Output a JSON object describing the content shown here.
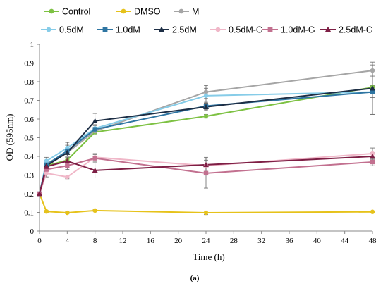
{
  "chart_data": {
    "type": "line",
    "title": "",
    "caption": "(a)",
    "xlabel": "Time (h)",
    "ylabel": "OD (595nm)",
    "xlim": [
      0,
      48
    ],
    "ylim": [
      0,
      1
    ],
    "x_ticks": [
      0,
      4,
      8,
      12,
      16,
      20,
      24,
      28,
      32,
      36,
      40,
      44,
      48
    ],
    "y_ticks": [
      0,
      0.1,
      0.2,
      0.3,
      0.4,
      0.5,
      0.6,
      0.7,
      0.8,
      0.9,
      1
    ],
    "x_tick_labels": [
      "0",
      "4",
      "8",
      "12",
      "16",
      "20",
      "24",
      "28",
      "32",
      "36",
      "40",
      "44",
      "48"
    ],
    "y_tick_labels": [
      "0",
      "0.1",
      "0.2",
      "0.3",
      "0.4",
      "0.5",
      "0.6",
      "0.7",
      "0.8",
      "0.9",
      "1"
    ],
    "grid": false,
    "legend_position": "top",
    "x": [
      0,
      1,
      4,
      8,
      24,
      48
    ],
    "series": [
      {
        "name": "Control",
        "color": "#7dc142",
        "marker": "circle",
        "values": [
          0.2,
          0.35,
          0.38,
          0.53,
          0.615,
          0.77
        ],
        "errors": [
          0.005,
          0.01,
          0.01,
          0.01,
          0.01,
          0.01
        ]
      },
      {
        "name": "DMSO",
        "color": "#e6c21a",
        "marker": "circle",
        "values": [
          0.2,
          0.105,
          0.098,
          0.11,
          0.098,
          0.103
        ],
        "errors": [
          0.005,
          0.005,
          0.005,
          0.005,
          0.01,
          0.005
        ]
      },
      {
        "name": "M",
        "color": "#a5a5a5",
        "marker": "circle",
        "values": [
          0.2,
          0.36,
          0.42,
          0.535,
          0.745,
          0.86
        ],
        "errors": [
          0.005,
          0.02,
          0.02,
          0.02,
          0.035,
          0.03
        ]
      },
      {
        "name": "0.5dM",
        "color": "#86cce8",
        "marker": "circle",
        "values": [
          0.2,
          0.375,
          0.445,
          0.55,
          0.725,
          0.745
        ],
        "errors": [
          0.005,
          0.02,
          0.03,
          0.02,
          0.04,
          0.03
        ]
      },
      {
        "name": "1.0dM",
        "color": "#2e75a2",
        "marker": "square",
        "values": [
          0.2,
          0.355,
          0.43,
          0.545,
          0.67,
          0.745
        ],
        "errors": [
          0.005,
          0.02,
          0.03,
          0.02,
          0.02,
          0.12
        ]
      },
      {
        "name": "2.5dM",
        "color": "#1d2e45",
        "marker": "triangle",
        "values": [
          0.2,
          0.35,
          0.42,
          0.59,
          0.665,
          0.765
        ],
        "errors": [
          0.005,
          0.02,
          0.02,
          0.04,
          0.02,
          0.14
        ]
      },
      {
        "name": "0.5dM-G",
        "color": "#f0b7c8",
        "marker": "circle",
        "values": [
          0.2,
          0.31,
          0.29,
          0.395,
          0.35,
          0.415
        ],
        "errors": [
          0.005,
          0.02,
          0.01,
          0.02,
          0.03,
          0.03
        ]
      },
      {
        "name": "1.0dM-G",
        "color": "#c2708f",
        "marker": "square",
        "values": [
          0.2,
          0.33,
          0.35,
          0.39,
          0.31,
          0.37
        ],
        "errors": [
          0.005,
          0.02,
          0.02,
          0.02,
          0.08,
          0.02
        ]
      },
      {
        "name": "2.5dM-G",
        "color": "#7e1f45",
        "marker": "triangle",
        "values": [
          0.2,
          0.345,
          0.375,
          0.325,
          0.355,
          0.4
        ],
        "errors": [
          0.005,
          0.02,
          0.02,
          0.04,
          0.04,
          0.02
        ]
      }
    ]
  }
}
